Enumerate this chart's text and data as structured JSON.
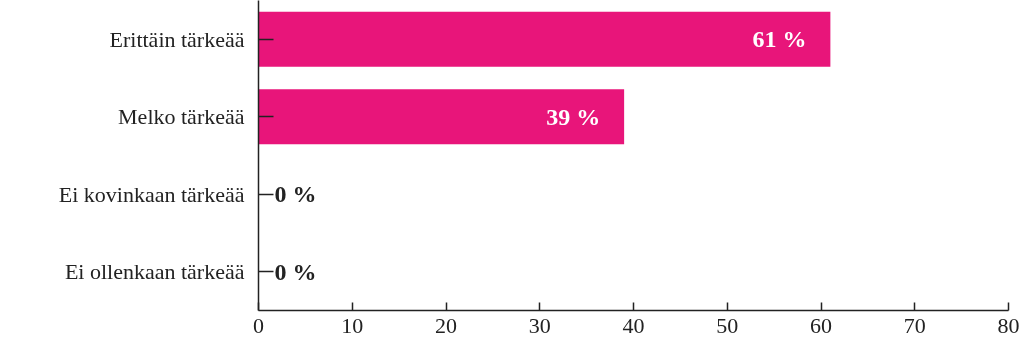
{
  "chart_data": {
    "type": "bar",
    "orientation": "horizontal",
    "categories": [
      "Erittäin tärkeää",
      "Melko tärkeää",
      "Ei kovinkaan tärkeää",
      "Ei ollenkaan tärkeää"
    ],
    "values": [
      61,
      39,
      0,
      0
    ],
    "value_labels": [
      "61 %",
      "39 %",
      "0 %",
      "0 %"
    ],
    "color": "#e8157a",
    "xlim": [
      0,
      80
    ],
    "xticks": [
      0,
      10,
      20,
      30,
      40,
      50,
      60,
      70,
      80
    ],
    "grid": false
  }
}
